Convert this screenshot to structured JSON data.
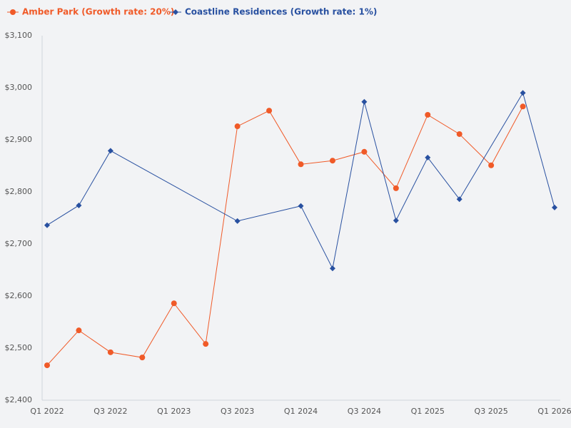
{
  "chart_data": {
    "type": "line",
    "categories": [
      "Q1 2022",
      null,
      "Q3 2022",
      null,
      "Q1 2023",
      null,
      "Q3 2023",
      null,
      "Q1 2024",
      null,
      "Q3 2024",
      null,
      "Q1 2025",
      null,
      "Q3 2025",
      null,
      "Q1 2026"
    ],
    "series": [
      {
        "name": "Amber Park (Growth rate: 20%)",
        "color": "#f05a28",
        "marker": "circle",
        "values": [
          2467,
          2534,
          2492,
          2482,
          2586,
          2508,
          2926,
          2956,
          2853,
          2860,
          2877,
          2807,
          2948,
          2911,
          2851,
          2964,
          null
        ]
      },
      {
        "name": "Coastline Residences (Growth rate: 1%)",
        "color": "#2850a0",
        "marker": "diamond",
        "values": [
          2736,
          2774,
          2879,
          null,
          null,
          null,
          2744,
          null,
          2773,
          2653,
          2973,
          2745,
          2866,
          2786,
          null,
          2990,
          2770
        ]
      }
    ],
    "connect_gaps": true,
    "ylim": [
      2400,
      3100
    ],
    "yticks": [
      {
        "value": 2400,
        "label": "$2,400"
      },
      {
        "value": 2500,
        "label": "$2,500"
      },
      {
        "value": 2600,
        "label": "$2,600"
      },
      {
        "value": 2700,
        "label": "$2,700"
      },
      {
        "value": 2800,
        "label": "$2,800"
      },
      {
        "value": 2900,
        "label": "$2,900"
      },
      {
        "value": 3000,
        "label": "$3,000"
      },
      {
        "value": 3100,
        "label": "$3,100"
      }
    ],
    "grid": false,
    "legend": "top-left"
  }
}
